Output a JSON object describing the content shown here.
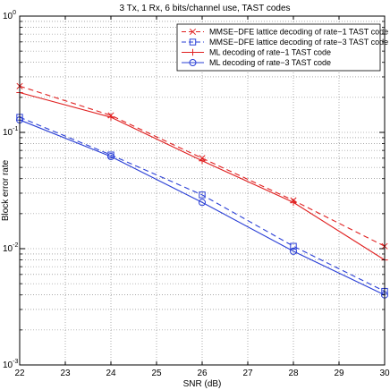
{
  "chart_data": {
    "type": "line",
    "title": "3 Tx, 1 Rx, 6 bits/channel use, TAST codes",
    "xlabel": "SNR (dB)",
    "ylabel": "Block error rate",
    "xlim": [
      22,
      30
    ],
    "ylim": [
      0.001,
      1
    ],
    "yscale": "log",
    "grid": true,
    "legend_position": "top-right",
    "x_ticks": [
      "22",
      "23",
      "24",
      "25",
      "26",
      "27",
      "28",
      "29",
      "30"
    ],
    "y_ticks": [
      {
        "value": 1,
        "mantissa": "10",
        "exp": "0"
      },
      {
        "value": 0.1,
        "mantissa": "10",
        "exp": "-1"
      },
      {
        "value": 0.01,
        "mantissa": "10",
        "exp": "-2"
      },
      {
        "value": 0.001,
        "mantissa": "10",
        "exp": "-3"
      }
    ],
    "series": [
      {
        "name": "MMSE−DFE lattice decoding of rate−1 TAST code",
        "color": "#e02020",
        "dash": "6,4",
        "marker": "x",
        "x": [
          22,
          24,
          26,
          28,
          30
        ],
        "y": [
          0.25,
          0.14,
          0.06,
          0.026,
          0.0105
        ]
      },
      {
        "name": "MMSE−DFE lattice decoding of rate−3 TAST code",
        "color": "#2a3fd6",
        "dash": "6,4",
        "marker": "square",
        "x": [
          22,
          24,
          26,
          28,
          30
        ],
        "y": [
          0.135,
          0.064,
          0.029,
          0.0105,
          0.0043
        ]
      },
      {
        "name": "ML decoding of rate−1 TAST code",
        "color": "#e02020",
        "dash": "",
        "marker": "plus",
        "x": [
          22,
          24,
          26,
          28,
          30
        ],
        "y": [
          0.22,
          0.135,
          0.057,
          0.025,
          0.008
        ]
      },
      {
        "name": "ML decoding of rate−3 TAST code",
        "color": "#2a3fd6",
        "dash": "",
        "marker": "circle",
        "x": [
          22,
          24,
          26,
          28,
          30
        ],
        "y": [
          0.128,
          0.062,
          0.025,
          0.0095,
          0.004
        ]
      }
    ]
  }
}
